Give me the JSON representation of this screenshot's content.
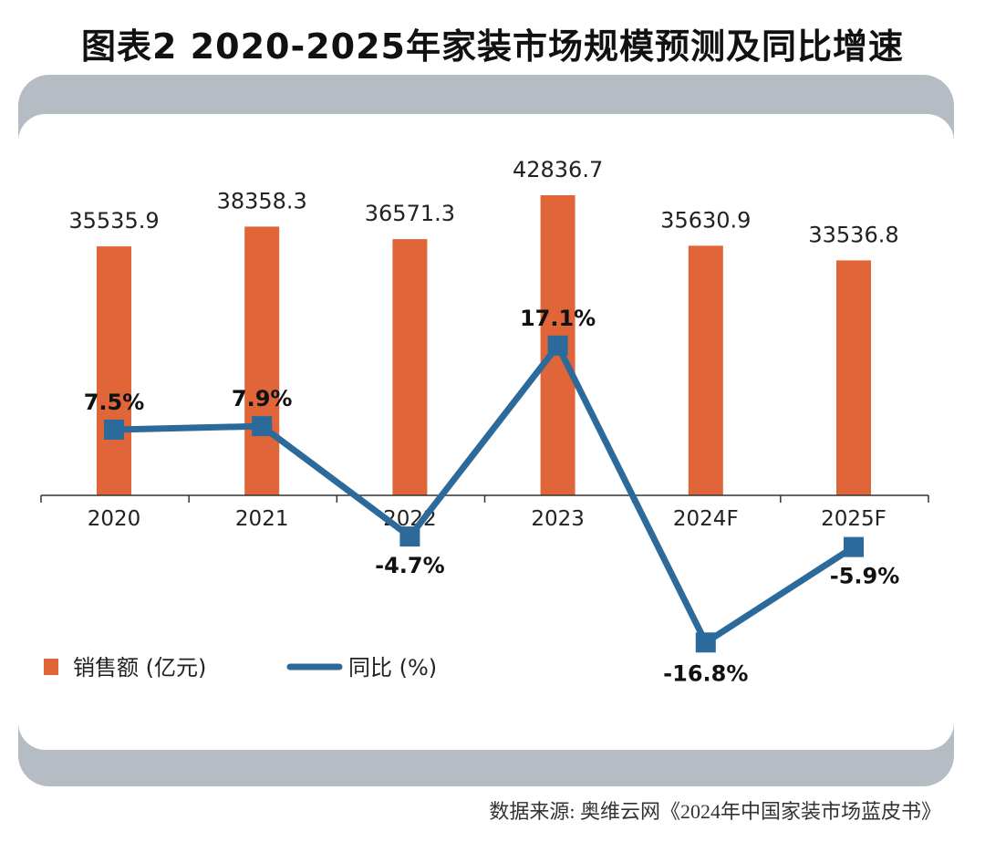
{
  "title": "图表2 2020-2025年家装市场规模预测及同比增速",
  "source": "数据来源: 奥维云网《2024年中国家装市场蓝皮书》",
  "chart_data": {
    "type": "bar+line",
    "categories": [
      "2020",
      "2021",
      "2022",
      "2023",
      "2024F",
      "2025F"
    ],
    "series": [
      {
        "name": "销售额 (亿元)",
        "type": "bar",
        "color": "#e0663a",
        "values": [
          35535.9,
          38358.3,
          36571.3,
          42836.7,
          35630.9,
          33536.8
        ],
        "labels": [
          "35535.9",
          "38358.3",
          "36571.3",
          "42836.7",
          "35630.9",
          "33536.8"
        ]
      },
      {
        "name": "同比 (%)",
        "type": "line",
        "color": "#2b6a9a",
        "values": [
          7.5,
          7.9,
          -4.7,
          17.1,
          -16.8,
          -5.9
        ],
        "labels": [
          "7.5%",
          "7.9%",
          "-4.7%",
          "17.1%",
          "-16.8%",
          "-5.9%"
        ]
      }
    ],
    "legend": "bottom-left",
    "grid": false
  }
}
